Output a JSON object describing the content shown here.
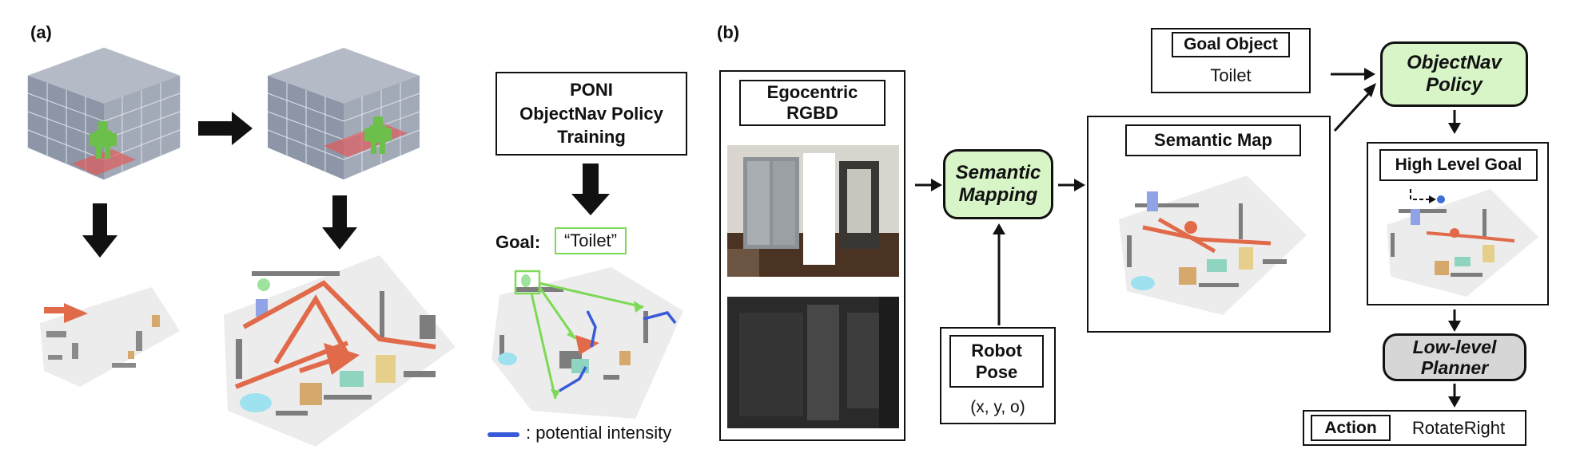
{
  "panel_a": {
    "label": "(a)",
    "poni_box": "PONI\nObjectNav Policy\nTraining",
    "goal_label": "Goal:",
    "goal_value": "“Toilet”",
    "legend_text": ": potential intensity"
  },
  "panel_b": {
    "label": "(b)",
    "egocentric_title": "Egocentric\nRGBD",
    "semantic_mapping": "Semantic\nMapping",
    "robot_pose_title": "Robot\nPose",
    "robot_pose_value": "(x, y, o)",
    "semantic_map_title": "Semantic Map",
    "goal_object_title": "Goal Object",
    "goal_object_value": "Toilet",
    "objectnav_policy": "ObjectNav\nPolicy",
    "high_level_goal_title": "High Level Goal",
    "low_level_planner": "Low-level\nPlanner",
    "action_title": "Action",
    "action_value": "RotateRight"
  },
  "colors": {
    "node_green": "#d8f5c8",
    "node_gray": "#d6d6d6",
    "goal_box_border": "#7ed957",
    "map_path": "#e06a4a",
    "potential_blue": "#3a5bd9",
    "green_arrow": "#7ed957"
  }
}
